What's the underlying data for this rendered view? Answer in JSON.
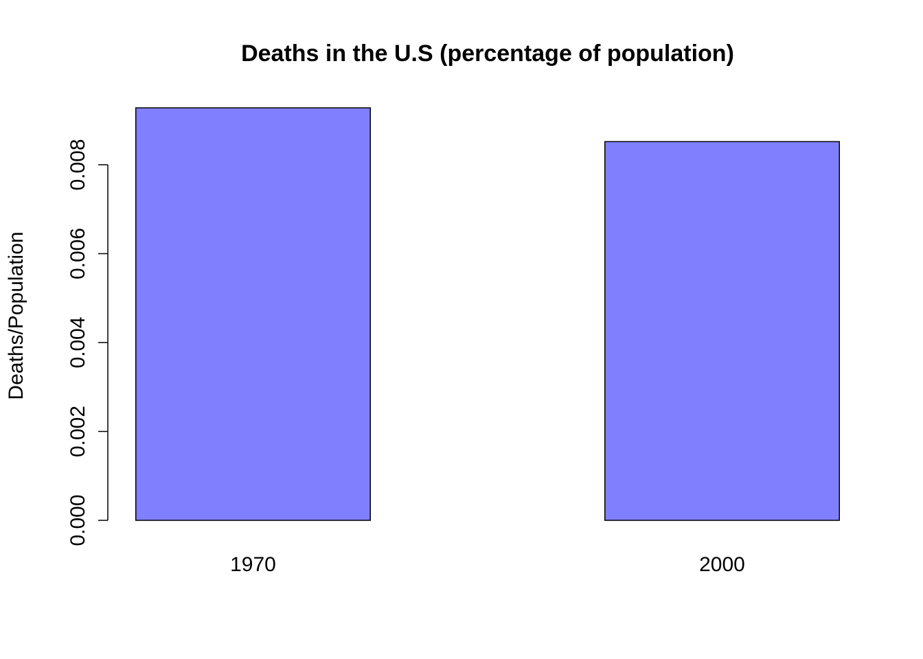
{
  "chart_data": {
    "type": "bar",
    "title": "Deaths in the U.S (percentage of population)",
    "y_label": "Deaths/Population",
    "categories": [
      "1970",
      "2000"
    ],
    "values": [
      0.00928,
      0.00852
    ],
    "color": "#8080ff",
    "ylim": [
      0,
      0.0096
    ],
    "yticks": [
      {
        "value": 0,
        "label": "0.000"
      },
      {
        "value": 0.002,
        "label": "0.002"
      },
      {
        "value": 0.004,
        "label": "0.004"
      },
      {
        "value": 0.006,
        "label": "0.006"
      },
      {
        "value": 0.008,
        "label": "0.008"
      }
    ],
    "grid": false
  }
}
